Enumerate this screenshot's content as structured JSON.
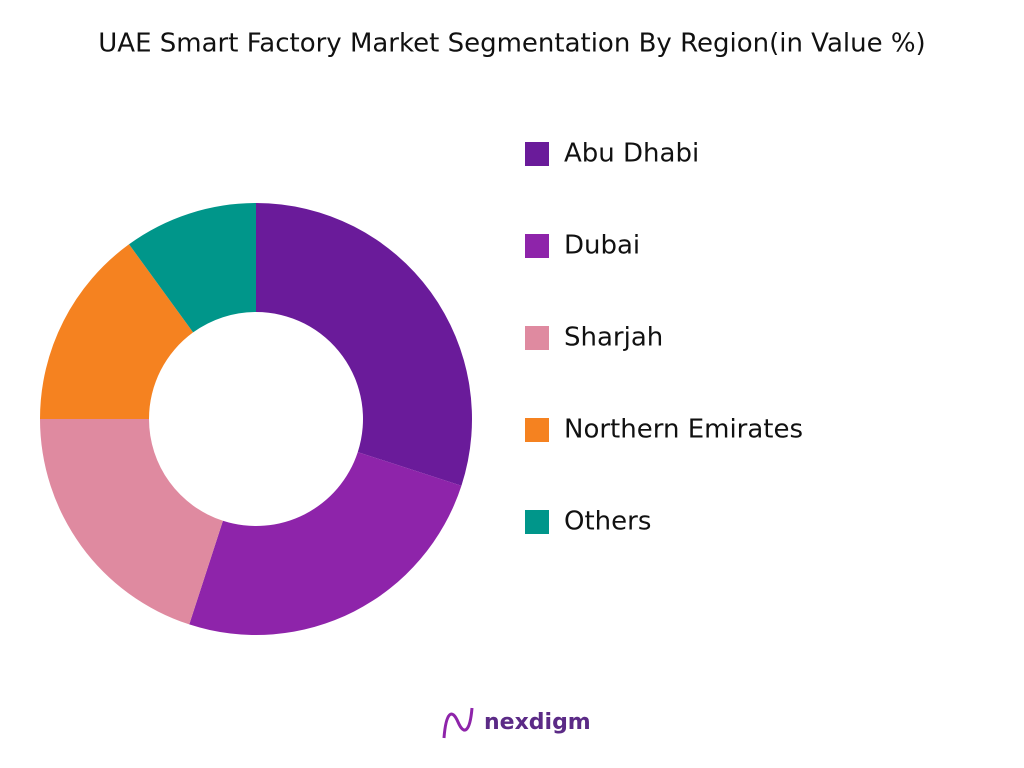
{
  "chart_data": {
    "type": "donut",
    "title": "UAE Smart Factory Market Segmentation By Region(in Value %)",
    "categories": [
      "Abu Dhabi",
      "Dubai",
      "Sharjah",
      "Northern Emirates",
      "Others"
    ],
    "values": [
      30,
      25,
      20,
      15,
      10
    ],
    "colors": [
      "#6a1b9a",
      "#8e24aa",
      "#df8aa0",
      "#f58220",
      "#00968a"
    ],
    "legend": "right",
    "watermark": "nexdigm"
  }
}
